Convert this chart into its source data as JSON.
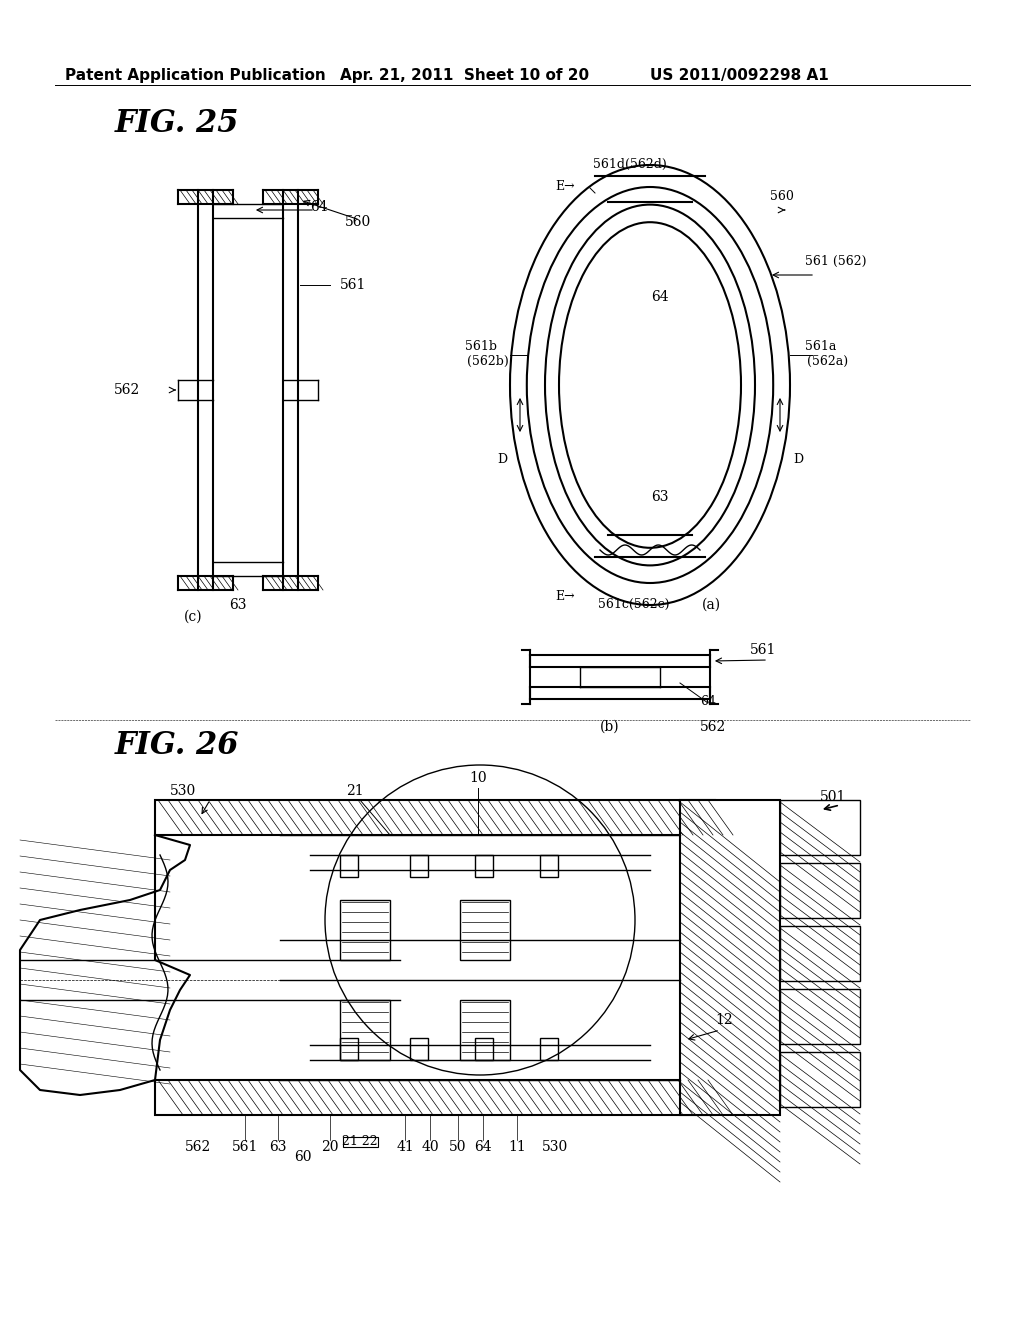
{
  "bg_color": "#ffffff",
  "header_text1": "Patent Application Publication",
  "header_text2": "Apr. 21, 2011  Sheet 10 of 20",
  "header_text3": "US 2011/0092298 A1",
  "fig25_title": "FIG. 25",
  "fig26_title": "FIG. 26",
  "fig_font_size": 22,
  "header_font_size": 11,
  "label_font_size": 10
}
